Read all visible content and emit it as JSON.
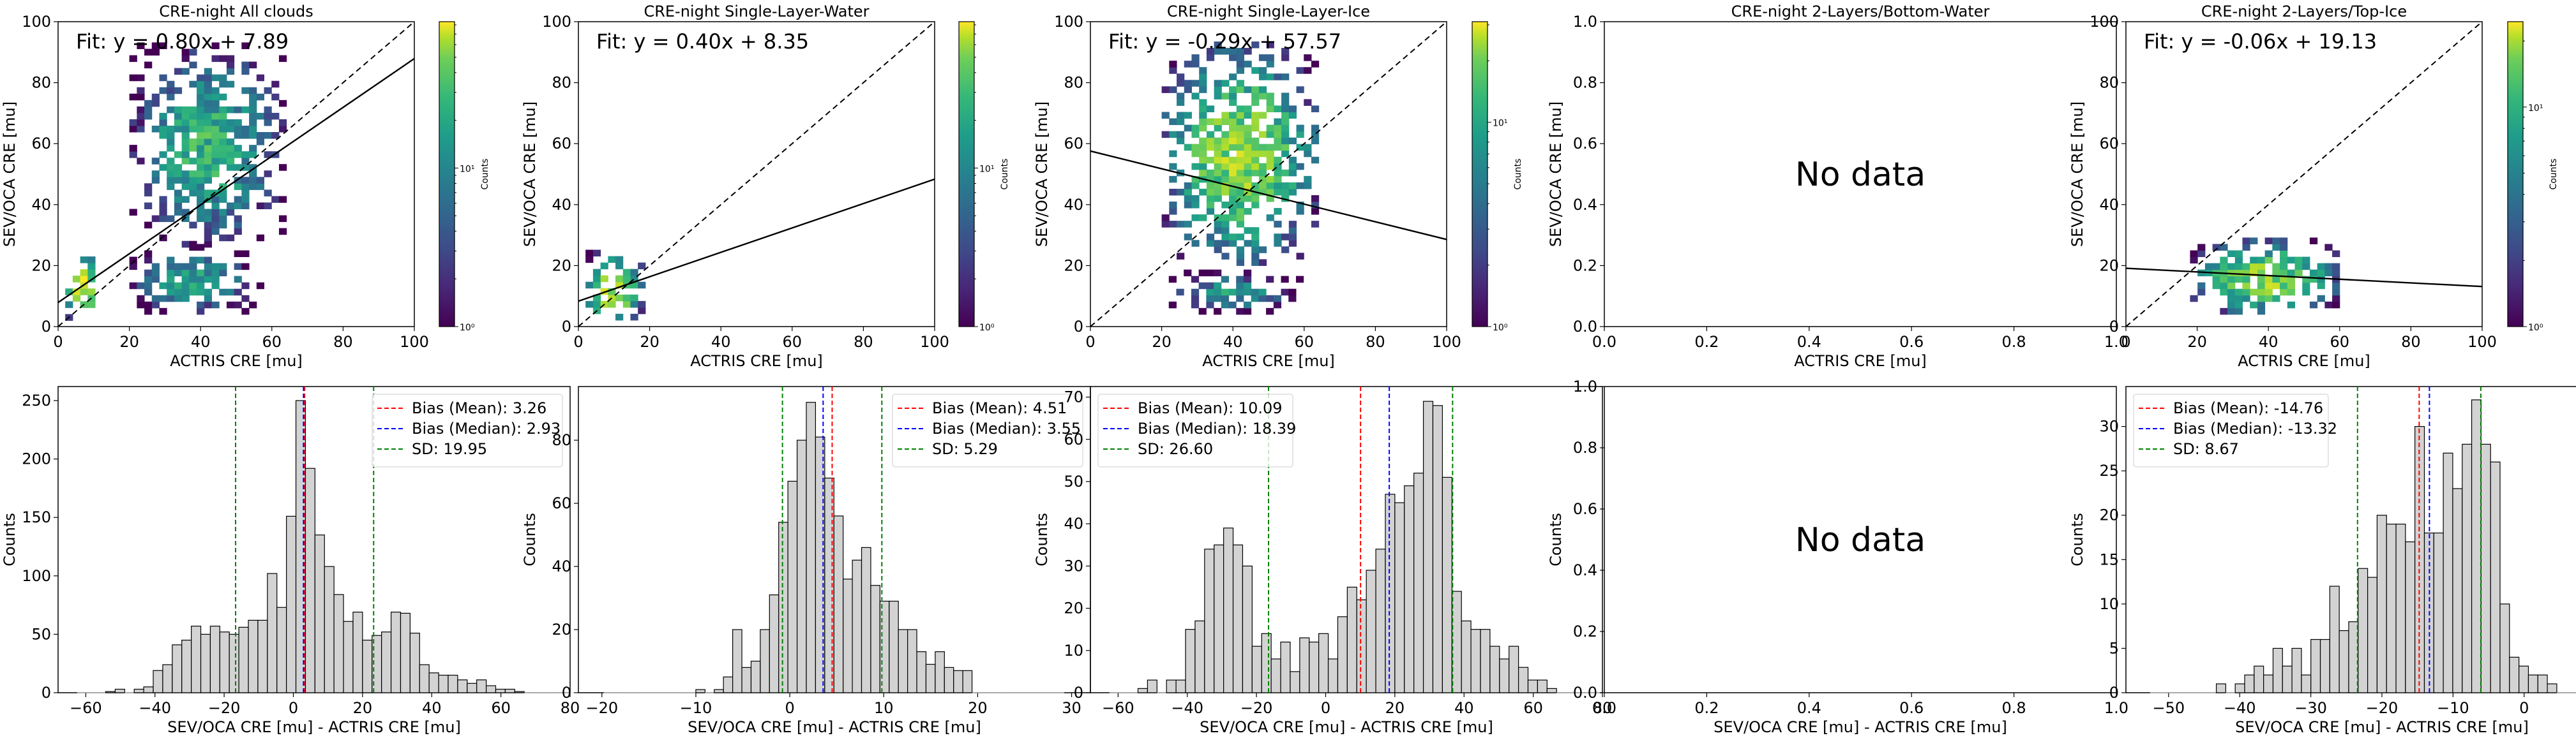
{
  "figure": {
    "colorbar_label": "Counts",
    "colorbar_ticks": [
      "10⁰",
      "10¹"
    ],
    "colormap": "viridis",
    "hist_bar_color": "#d3d3d3",
    "hist_edge_color": "#000000",
    "mean_line_color": "#ff0000",
    "median_line_color": "#0000ff",
    "sd_line_color": "#008000"
  },
  "chart_data": [
    {
      "type": "heatmap",
      "panel": "scatter-all-clouds",
      "title": "CRE-night All clouds",
      "xlabel": "ACTRIS CRE [mu]",
      "ylabel": "SEV/OCA CRE [mu]",
      "xlim": [
        0,
        100
      ],
      "ylim": [
        0,
        100
      ],
      "xticks": [
        "0",
        "20",
        "40",
        "60",
        "80",
        "100"
      ],
      "yticks": [
        "0",
        "20",
        "40",
        "60",
        "80",
        "100"
      ],
      "fit_text": "Fit: y = 0.80x + 7.89",
      "fit": {
        "slope": 0.8,
        "intercept": 7.89
      },
      "one_to_one": true,
      "clusters": [
        {
          "x": [
            2,
            12
          ],
          "y": [
            2,
            24
          ],
          "peak_count": 40
        },
        {
          "x": [
            20,
            56
          ],
          "y": [
            4,
            26
          ],
          "peak_count": 12
        },
        {
          "x": [
            20,
            64
          ],
          "y": [
            26,
            92
          ],
          "peak_count": 15
        }
      ]
    },
    {
      "type": "heatmap",
      "panel": "scatter-single-layer-water",
      "title": "CRE-night Single-Layer-Water",
      "xlabel": "ACTRIS CRE [mu]",
      "ylabel": "SEV/OCA CRE [mu]",
      "xlim": [
        0,
        100
      ],
      "ylim": [
        0,
        100
      ],
      "xticks": [
        "0",
        "20",
        "40",
        "60",
        "80",
        "100"
      ],
      "yticks": [
        "0",
        "20",
        "40",
        "60",
        "80",
        "100"
      ],
      "fit_text": "Fit: y = 0.40x + 8.35",
      "fit": {
        "slope": 0.4,
        "intercept": 8.35
      },
      "one_to_one": true,
      "clusters": [
        {
          "x": [
            2,
            18
          ],
          "y": [
            0,
            24
          ],
          "peak_count": 40
        }
      ]
    },
    {
      "type": "heatmap",
      "panel": "scatter-single-layer-ice",
      "title": "CRE-night Single-Layer-Ice",
      "xlabel": "ACTRIS CRE [mu]",
      "ylabel": "SEV/OCA CRE [mu]",
      "xlim": [
        0,
        100
      ],
      "ylim": [
        0,
        100
      ],
      "xticks": [
        "0",
        "20",
        "40",
        "60",
        "80",
        "100"
      ],
      "yticks": [
        "0",
        "20",
        "40",
        "60",
        "80",
        "100"
      ],
      "fit_text": "Fit: y = -0.29x + 57.57",
      "fit": {
        "slope": -0.29,
        "intercept": 57.57
      },
      "one_to_one": true,
      "clusters": [
        {
          "x": [
            22,
            58
          ],
          "y": [
            4,
            18
          ],
          "peak_count": 10
        },
        {
          "x": [
            20,
            64
          ],
          "y": [
            20,
            92
          ],
          "peak_count": 30
        }
      ]
    },
    {
      "type": "heatmap",
      "panel": "scatter-2-layers-bottom-water",
      "title": "CRE-night 2-Layers/Bottom-Water",
      "xlabel": "ACTRIS CRE [mu]",
      "ylabel": "SEV/OCA CRE [mu]",
      "xlim": [
        0,
        1
      ],
      "ylim": [
        0,
        1
      ],
      "xticks": [
        "0.0",
        "0.2",
        "0.4",
        "0.6",
        "0.8",
        "1.0"
      ],
      "yticks": [
        "0.0",
        "0.2",
        "0.4",
        "0.6",
        "0.8",
        "1.0"
      ],
      "no_data_text": "No data"
    },
    {
      "type": "heatmap",
      "panel": "scatter-2-layers-top-ice",
      "title": "CRE-night 2-Layers/Top-Ice",
      "xlabel": "ACTRIS CRE [mu]",
      "ylabel": "SEV/OCA CRE [mu]",
      "xlim": [
        0,
        100
      ],
      "ylim": [
        0,
        100
      ],
      "xticks": [
        "0",
        "20",
        "40",
        "60",
        "80",
        "100"
      ],
      "yticks": [
        "0",
        "20",
        "40",
        "60",
        "80",
        "100"
      ],
      "fit_text": "Fit: y = -0.06x + 19.13",
      "fit": {
        "slope": -0.06,
        "intercept": 19.13
      },
      "one_to_one": true,
      "clusters": [
        {
          "x": [
            18,
            60
          ],
          "y": [
            4,
            28
          ],
          "peak_count": 30
        }
      ]
    },
    {
      "type": "bar",
      "panel": "hist-all-clouds",
      "xlabel": "SEV/OCA CRE [mu] - ACTRIS CRE [mu]",
      "ylabel": "Counts",
      "xlim": [
        -68,
        80
      ],
      "ylim": [
        0,
        262
      ],
      "xticks": [
        -60,
        -40,
        -20,
        0,
        20,
        40,
        60,
        80
      ],
      "yticks": [
        0,
        50,
        100,
        150,
        200,
        250
      ],
      "bin_start": -62.5,
      "bin_width": 2.75,
      "values": [
        0,
        0,
        0,
        1,
        3,
        0,
        3,
        5,
        19,
        24,
        41,
        45,
        57,
        50,
        57,
        52,
        50,
        56,
        62,
        62,
        102,
        73,
        151,
        250,
        192,
        135,
        108,
        84,
        61,
        69,
        45,
        49,
        52,
        69,
        68,
        51,
        24,
        17,
        15,
        15,
        11,
        8,
        11,
        6,
        3,
        3,
        1,
        0,
        0,
        0,
        0,
        0,
        0
      ],
      "mean": 3.26,
      "median": 2.93,
      "sd": 19.95,
      "legend": [
        "Bias (Mean): 3.26",
        "Bias (Median): 2.93",
        "SD: 19.95"
      ],
      "legend_position": "upper-right"
    },
    {
      "type": "bar",
      "panel": "hist-single-layer-water",
      "xlabel": "SEV/OCA CRE [mu] - ACTRIS CRE [mu]",
      "ylabel": "Counts",
      "xlim": [
        -22.5,
        32
      ],
      "ylim": [
        0,
        97
      ],
      "xticks": [
        -20,
        -10,
        0,
        10,
        20,
        30
      ],
      "yticks": [
        0,
        20,
        40,
        60,
        80
      ],
      "bin_start": -19.8,
      "bin_width": 0.98,
      "values": [
        0,
        0,
        0,
        0,
        0,
        0,
        0,
        0,
        0,
        0,
        1,
        0,
        1,
        5,
        20,
        8,
        10,
        20,
        31,
        54,
        67,
        80,
        92,
        81,
        68,
        56,
        36,
        42,
        46,
        34,
        29,
        29,
        20,
        20,
        13,
        9,
        13,
        8,
        7,
        7,
        0,
        0,
        0,
        0,
        0,
        0,
        0,
        0,
        0,
        0
      ],
      "mean": 4.51,
      "median": 3.55,
      "sd": 5.29,
      "legend": [
        "Bias (Mean): 4.51",
        "Bias (Median): 3.55",
        "SD: 5.29"
      ],
      "legend_position": "upper-right"
    },
    {
      "type": "bar",
      "panel": "hist-single-layer-ice",
      "xlabel": "SEV/OCA CRE [mu] - ACTRIS CRE [mu]",
      "ylabel": "Counts",
      "xlim": [
        -68,
        80
      ],
      "ylim": [
        0,
        72.5
      ],
      "xticks": [
        -60,
        -40,
        -20,
        0,
        20,
        40,
        60,
        80
      ],
      "yticks": [
        0,
        10,
        20,
        30,
        40,
        50,
        60,
        70
      ],
      "bin_start": -62.5,
      "bin_width": 2.75,
      "values": [
        0,
        0,
        0,
        1,
        3,
        0,
        3,
        3,
        15,
        17,
        34,
        35,
        39,
        35,
        30,
        11,
        14,
        8,
        12,
        5,
        13,
        12,
        14,
        8,
        18,
        25,
        22,
        29,
        34,
        47,
        45,
        49,
        52,
        69,
        68,
        51,
        24,
        17,
        15,
        15,
        11,
        8,
        11,
        6,
        3,
        3,
        1,
        0,
        0,
        0,
        0,
        0,
        0
      ],
      "mean": 10.09,
      "median": 18.39,
      "sd": 26.6,
      "legend": [
        "Bias (Mean): 10.09",
        "Bias (Median): 18.39",
        "SD: 26.60"
      ],
      "legend_position": "upper-left"
    },
    {
      "type": "bar",
      "panel": "hist-2-layers-bottom-water",
      "xlabel": "SEV/OCA CRE [mu] - ACTRIS CRE [mu]",
      "ylabel": "Counts",
      "xlim": [
        0,
        1
      ],
      "ylim": [
        0,
        1
      ],
      "xticks": [
        "0.0",
        "0.2",
        "0.4",
        "0.6",
        "0.8",
        "1.0"
      ],
      "yticks": [
        "0.0",
        "0.2",
        "0.4",
        "0.6",
        "0.8",
        "1.0"
      ],
      "values": [],
      "no_data_text": "No data"
    },
    {
      "type": "bar",
      "panel": "hist-2-layers-top-ice",
      "xlabel": "SEV/OCA CRE [mu] - ACTRIS CRE [mu]",
      "ylabel": "Counts",
      "xlim": [
        -56,
        16
      ],
      "ylim": [
        0,
        34.5
      ],
      "xticks": [
        -50,
        -40,
        -30,
        -20,
        -10,
        0,
        10
      ],
      "yticks": [
        0,
        5,
        10,
        15,
        20,
        25,
        30
      ],
      "bin_start": -52.6,
      "bin_width": 1.33,
      "values": [
        0,
        0,
        0,
        0,
        0,
        0,
        0,
        1,
        0,
        1,
        2,
        3,
        2,
        5,
        3,
        5,
        2,
        6,
        6,
        12,
        7,
        8,
        14,
        13,
        20,
        19,
        19,
        17,
        30,
        18,
        18,
        27,
        23,
        28,
        33,
        28,
        26,
        10,
        4,
        3,
        2,
        2,
        1,
        0,
        0,
        0,
        0,
        0,
        0,
        0
      ],
      "mean": -14.76,
      "median": -13.32,
      "sd": 8.67,
      "legend": [
        "Bias (Mean): -14.76",
        "Bias (Median): -13.32",
        "SD: 8.67"
      ],
      "legend_position": "upper-left"
    }
  ]
}
